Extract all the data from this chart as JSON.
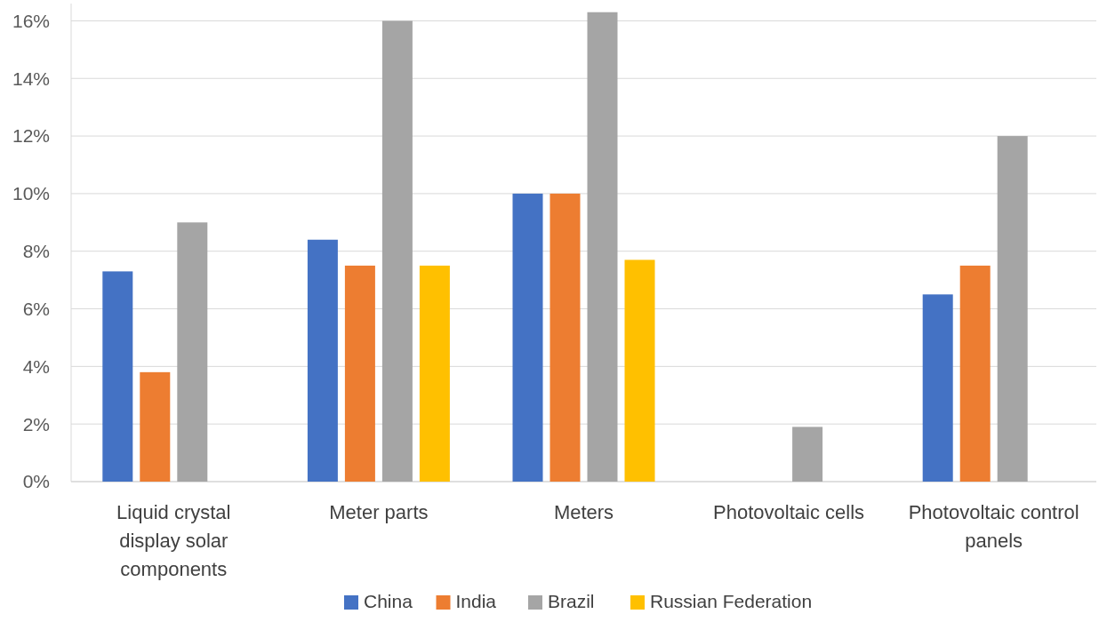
{
  "chart_data": {
    "type": "bar",
    "categories": [
      "Liquid crystal display solar components",
      "Meter parts",
      "Meters",
      "Photovoltaic cells",
      "Photovoltaic control panels"
    ],
    "series": [
      {
        "name": "China",
        "color": "#4472c4",
        "values": [
          7.3,
          8.4,
          10,
          null,
          6.5
        ]
      },
      {
        "name": "India",
        "color": "#ed7d31",
        "values": [
          3.8,
          7.5,
          10,
          null,
          7.5
        ]
      },
      {
        "name": "Brazil",
        "color": "#a5a5a5",
        "values": [
          9.0,
          16.0,
          16.3,
          1.9,
          12.0
        ]
      },
      {
        "name": "Russian Federation",
        "color": "#ffc000",
        "values": [
          null,
          7.5,
          7.7,
          null,
          null
        ]
      }
    ],
    "ylim": [
      0,
      16.6
    ],
    "yticks": [
      {
        "value": 0,
        "label": "0%"
      },
      {
        "value": 2,
        "label": "2%"
      },
      {
        "value": 4,
        "label": "4%"
      },
      {
        "value": 6,
        "label": "6%"
      },
      {
        "value": 8,
        "label": "8%"
      },
      {
        "value": 10,
        "label": "10%"
      },
      {
        "value": 12,
        "label": "12%"
      },
      {
        "value": 14,
        "label": "14%"
      },
      {
        "value": 16,
        "label": "16%"
      }
    ],
    "grid": "y",
    "legend": "bottom"
  }
}
